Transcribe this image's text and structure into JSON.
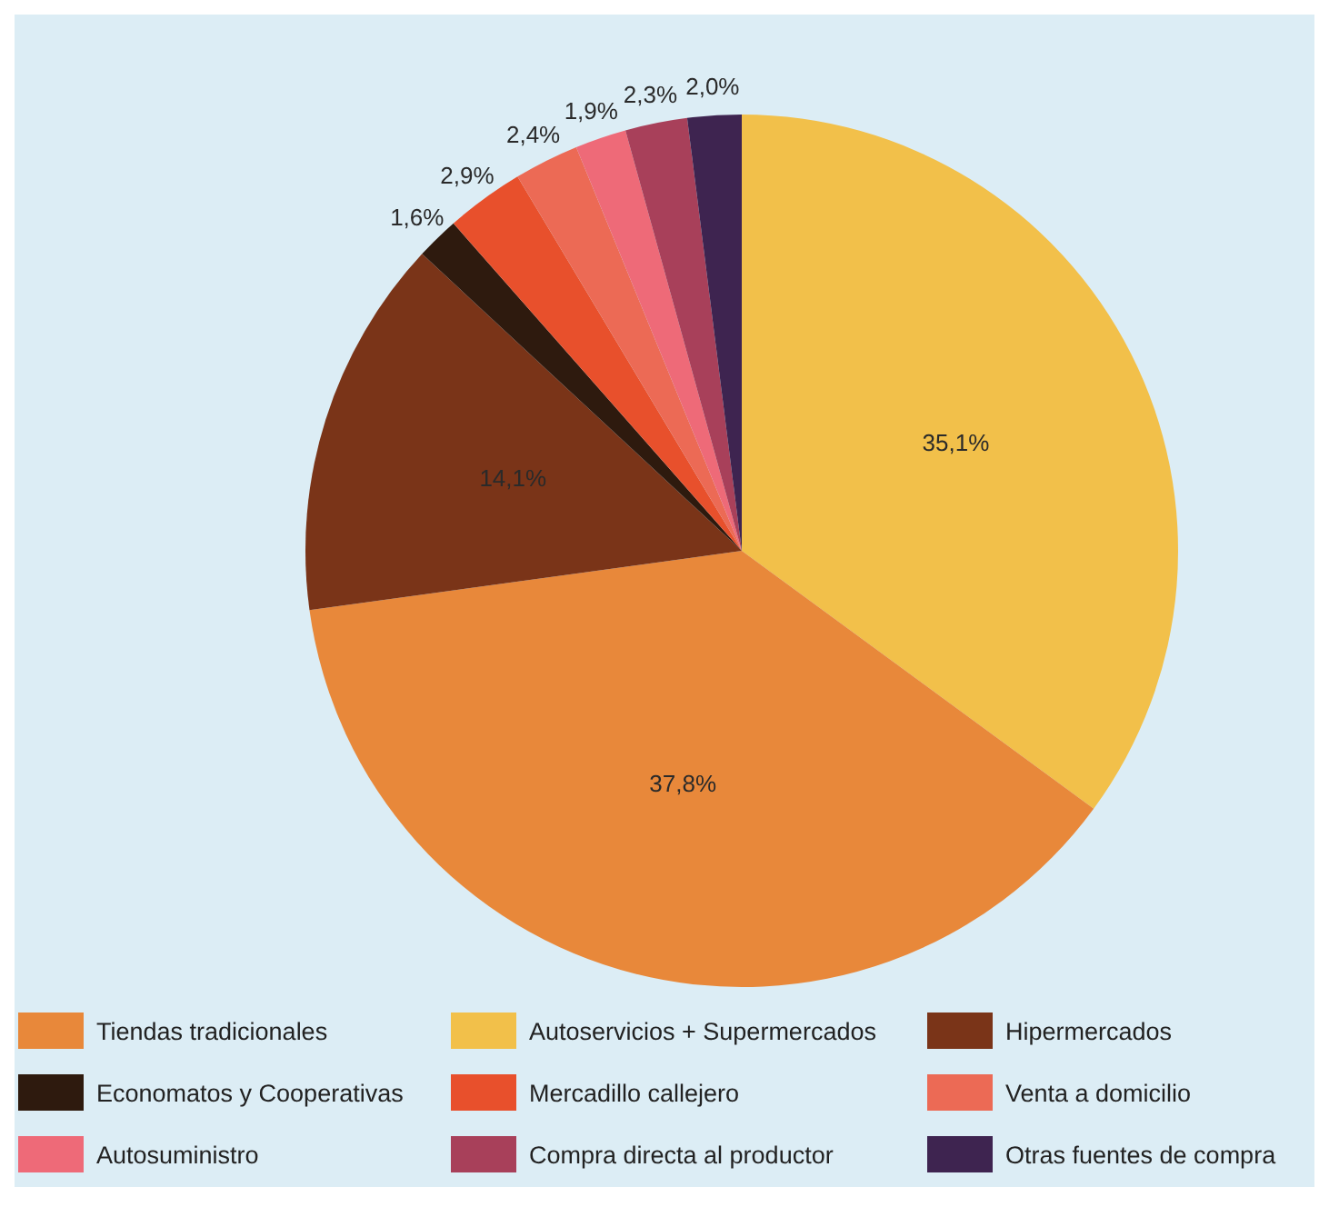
{
  "chart_data": {
    "type": "pie",
    "categories": [
      "Tiendas tradicionales",
      "Autoservicios + Supermercados",
      "Hipermercados",
      "Economatos y Cooperativas",
      "Mercadillo callejero",
      "Venta a domicilio",
      "Autosuministro",
      "Compra directa al productor",
      "Otras fuentes de compra"
    ],
    "values": [
      37.8,
      35.1,
      14.1,
      1.6,
      2.9,
      2.4,
      1.9,
      2.3,
      2.0
    ],
    "value_labels": [
      "37,8%",
      "35,1%",
      "14,1%",
      "1,6%",
      "2,9%",
      "2,4%",
      "1,9%",
      "2,3%",
      "2,0%"
    ],
    "colors": [
      "#e8883a",
      "#f2c04a",
      "#7a3418",
      "#2e1a0e",
      "#e8502c",
      "#ec6a55",
      "#ee6a78",
      "#a8405a",
      "#3e2450"
    ],
    "legend": "bottom"
  }
}
